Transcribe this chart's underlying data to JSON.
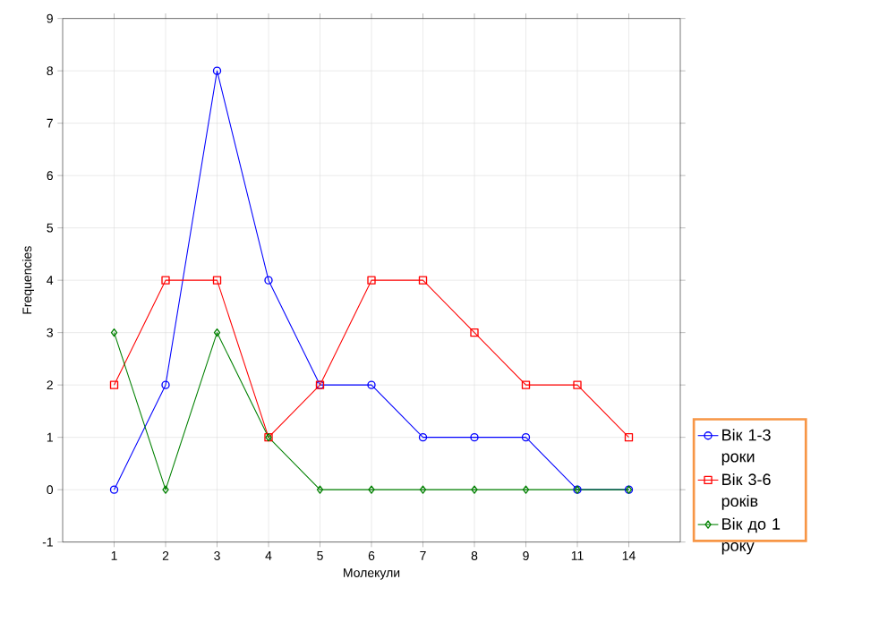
{
  "chart_data": {
    "type": "line",
    "xlabel": "Молекули",
    "ylabel": "Frequencies",
    "categories": [
      "1",
      "2",
      "3",
      "4",
      "5",
      "6",
      "7",
      "8",
      "9",
      "11",
      "14"
    ],
    "series": [
      {
        "name": "Вік 1-3 роки",
        "color": "#0000ff",
        "marker": "circle",
        "values": [
          0,
          2,
          8,
          4,
          2,
          2,
          1,
          1,
          1,
          0,
          0
        ]
      },
      {
        "name": "Вік 3-6 років",
        "color": "#ff0000",
        "marker": "square",
        "values": [
          2,
          4,
          4,
          1,
          2,
          4,
          4,
          3,
          2,
          2,
          1
        ]
      },
      {
        "name": "Вік до 1 року",
        "color": "#008000",
        "marker": "diamond",
        "values": [
          3,
          0,
          3,
          1,
          0,
          0,
          0,
          0,
          0,
          0,
          0
        ]
      }
    ],
    "ylim": [
      -1,
      9
    ],
    "yticks": [
      -1,
      0,
      1,
      2,
      3,
      4,
      5,
      6,
      7,
      8,
      9
    ],
    "grid": true,
    "legend": "bottom right",
    "line_style": "solid"
  }
}
